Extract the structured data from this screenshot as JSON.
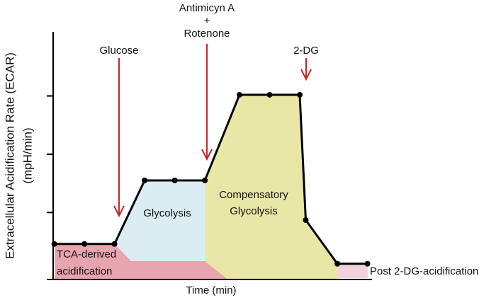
{
  "chart_data": {
    "type": "line",
    "y_label": "Extracellular Acidification Rate (ECAR)",
    "y_label_unit": "(mpH/min)",
    "x_label": "Time (min)",
    "x": [
      0,
      1,
      2,
      3,
      4,
      5,
      6.15,
      7.15,
      8.15,
      8.35,
      9.4,
      10.4
    ],
    "values": [
      0.46,
      0.46,
      0.46,
      1.55,
      1.55,
      1.55,
      3.02,
      3.02,
      3.02,
      0.87,
      0.12,
      0.12
    ],
    "color": "#000000",
    "xlim": [
      -0.25,
      10.55
    ],
    "ylim": [
      -0.15,
      4.1
    ],
    "yticks": [
      1,
      2,
      3
    ],
    "injection_color": "#c0282a",
    "injections": [
      {
        "lines": [
          "Glucose"
        ]
      },
      {
        "lines": [
          "Antimicyn A",
          "+",
          "Rotenone"
        ]
      },
      {
        "lines": [
          "2-DG"
        ]
      }
    ],
    "regions": [
      {
        "lines": [
          "TCA-derived",
          "acidification"
        ]
      },
      {
        "lines": [
          "Glycolysis"
        ]
      },
      {
        "lines": [
          "Compensatory",
          "Glycolysis"
        ]
      },
      {
        "lines": [
          "Post 2-DG-acidification"
        ]
      }
    ]
  }
}
